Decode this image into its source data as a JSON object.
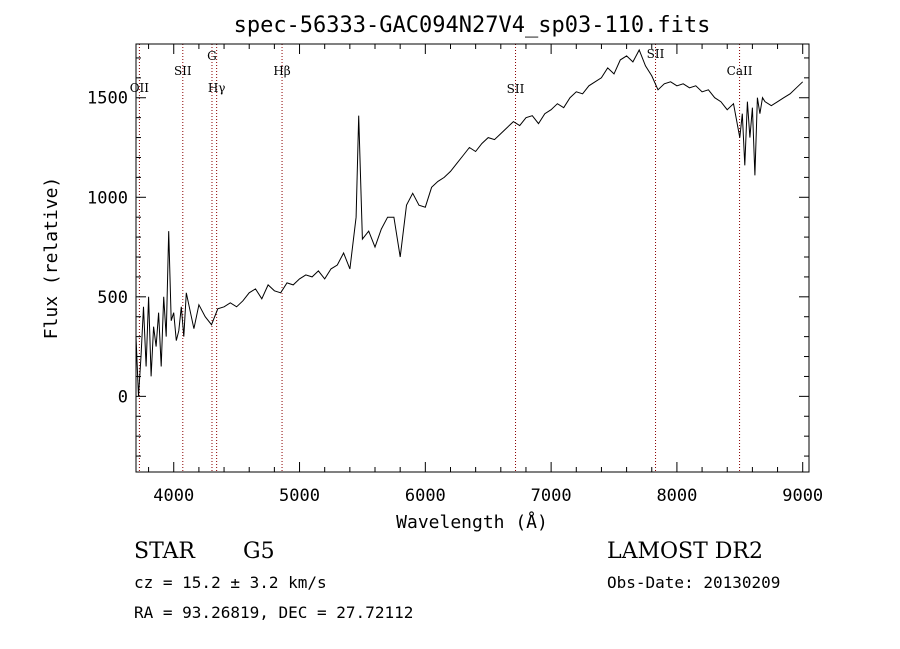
{
  "chart_data": {
    "type": "line",
    "title": "spec-56333-GAC094N27V4_sp03-110.fits",
    "xlabel": "Wavelength (Å)",
    "ylabel": "Flux (relative)",
    "xlim": [
      3700,
      9050
    ],
    "ylim": [
      -380,
      1770
    ],
    "xticks": [
      4000,
      5000,
      6000,
      7000,
      8000,
      9000
    ],
    "yticks": [
      0,
      500,
      1000,
      1500
    ],
    "grid": false,
    "series": [
      {
        "x": [
          3700,
          3720,
          3740,
          3760,
          3780,
          3800,
          3820,
          3840,
          3860,
          3880,
          3900,
          3920,
          3940,
          3960,
          3980,
          4000,
          4020,
          4040,
          4060,
          4080,
          4100,
          4130,
          4160,
          4200,
          4250,
          4300,
          4350,
          4400,
          4450,
          4500,
          4550,
          4600,
          4650,
          4700,
          4750,
          4800,
          4850,
          4900,
          4950,
          5000,
          5050,
          5100,
          5150,
          5200,
          5250,
          5300,
          5350,
          5400,
          5450,
          5470,
          5500,
          5550,
          5600,
          5650,
          5700,
          5750,
          5800,
          5850,
          5900,
          5950,
          6000,
          6050,
          6100,
          6150,
          6200,
          6250,
          6300,
          6350,
          6400,
          6450,
          6500,
          6550,
          6600,
          6650,
          6700,
          6750,
          6800,
          6850,
          6900,
          6950,
          7000,
          7050,
          7100,
          7150,
          7200,
          7250,
          7300,
          7350,
          7400,
          7450,
          7500,
          7550,
          7600,
          7650,
          7700,
          7750,
          7800,
          7850,
          7900,
          7950,
          8000,
          8050,
          8100,
          8150,
          8200,
          8250,
          8300,
          8350,
          8400,
          8450,
          8500,
          8520,
          8540,
          8560,
          8580,
          8600,
          8620,
          8640,
          8660,
          8680,
          8700,
          8750,
          8800,
          8850,
          8900,
          8950,
          9000
        ],
        "y": [
          300,
          0,
          200,
          450,
          150,
          500,
          100,
          350,
          250,
          420,
          150,
          500,
          300,
          830,
          380,
          420,
          280,
          330,
          450,
          300,
          520,
          430,
          340,
          460,
          400,
          360,
          440,
          450,
          470,
          450,
          480,
          520,
          540,
          490,
          560,
          530,
          520,
          570,
          560,
          590,
          610,
          600,
          630,
          590,
          640,
          660,
          720,
          640,
          900,
          1410,
          790,
          830,
          750,
          840,
          900,
          900,
          700,
          960,
          1020,
          960,
          950,
          1050,
          1080,
          1100,
          1130,
          1170,
          1210,
          1250,
          1230,
          1270,
          1300,
          1290,
          1320,
          1350,
          1380,
          1360,
          1400,
          1410,
          1370,
          1420,
          1440,
          1470,
          1450,
          1500,
          1530,
          1520,
          1560,
          1580,
          1600,
          1650,
          1620,
          1690,
          1710,
          1680,
          1740,
          1660,
          1610,
          1540,
          1570,
          1580,
          1560,
          1570,
          1550,
          1560,
          1530,
          1540,
          1500,
          1480,
          1440,
          1470,
          1300,
          1420,
          1160,
          1480,
          1300,
          1450,
          1110,
          1500,
          1420,
          1500,
          1480,
          1460,
          1480,
          1500,
          1520,
          1550,
          1580
        ]
      }
    ],
    "line_markers": [
      {
        "label": "OII",
        "x": 3727
      },
      {
        "label": "SII",
        "x": 4072
      },
      {
        "label": "G",
        "x": 4304
      },
      {
        "label": "Hγ",
        "x": 4341
      },
      {
        "label": "Hβ",
        "x": 4861
      },
      {
        "label": "SII",
        "x": 6717
      },
      {
        "label": "SII",
        "x": 7830
      },
      {
        "label": "CaII",
        "x": 8498
      }
    ]
  },
  "info": {
    "object_class": "STAR",
    "subclass": "G5",
    "survey": "LAMOST DR2",
    "redshift": "cz = 15.2 ± 3.2 km/s",
    "obs_date": "Obs-Date: 20130209",
    "coords": "RA =  93.26819, DEC =  27.72112"
  }
}
